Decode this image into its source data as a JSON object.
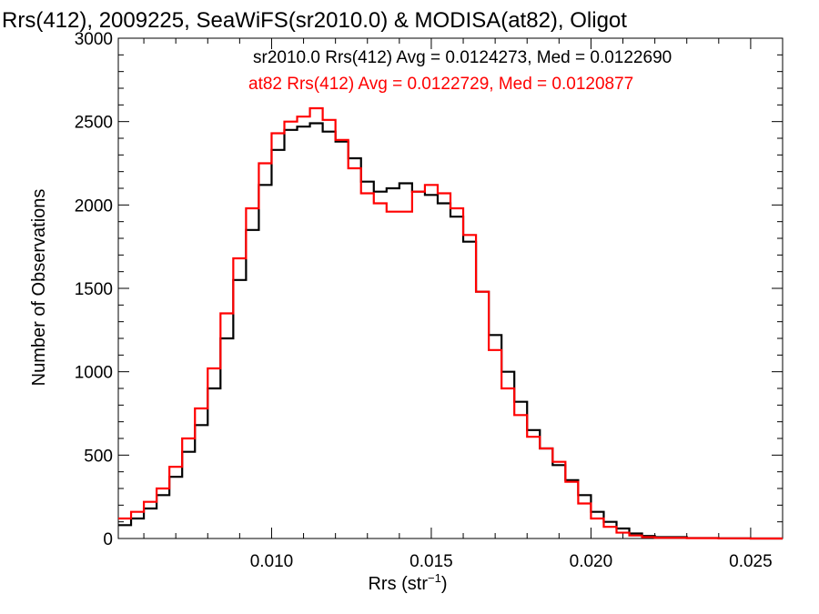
{
  "chart_data": {
    "type": "line",
    "style": "step histogram",
    "title": "Rrs(412), 2009225, SeaWiFS(sr2010.0) & MODISA(at82), Oligot",
    "xlabel": "Rrs (str",
    "xlabel_exponent": "−1",
    "xlabel_close": ")",
    "ylabel": "Number of Observations",
    "xlim": [
      0.0052,
      0.026
    ],
    "ylim": [
      0,
      3000
    ],
    "x_ticks": [
      0.01,
      0.015,
      0.02,
      0.025
    ],
    "x_tick_labels": [
      "0.010",
      "0.015",
      "0.020",
      "0.025"
    ],
    "y_ticks": [
      0,
      500,
      1000,
      1500,
      2000,
      2500,
      3000
    ],
    "y_tick_labels": [
      "0",
      "500",
      "1000",
      "1500",
      "2000",
      "2500",
      "3000"
    ],
    "grid": false,
    "legend_position": "top-right",
    "series": [
      {
        "name": "sr2010.0",
        "color": "#000000",
        "legend_text": "sr2010.0 Rrs(412) Avg = 0.0124273, Med = 0.0122690",
        "x": [
          0.0052,
          0.0056,
          0.006,
          0.0064,
          0.0068,
          0.0072,
          0.0076,
          0.008,
          0.0084,
          0.0088,
          0.0092,
          0.0096,
          0.01,
          0.0104,
          0.0108,
          0.0112,
          0.0116,
          0.012,
          0.0124,
          0.0128,
          0.0132,
          0.0136,
          0.014,
          0.0144,
          0.0148,
          0.0152,
          0.0156,
          0.016,
          0.0164,
          0.0168,
          0.0172,
          0.0176,
          0.018,
          0.0184,
          0.0188,
          0.0192,
          0.0196,
          0.02,
          0.0204,
          0.0208,
          0.0212,
          0.0216,
          0.022,
          0.023,
          0.024,
          0.025,
          0.026
        ],
        "values": [
          80,
          120,
          180,
          260,
          370,
          520,
          680,
          900,
          1200,
          1550,
          1850,
          2120,
          2330,
          2450,
          2470,
          2490,
          2440,
          2380,
          2280,
          2140,
          2080,
          2100,
          2130,
          2080,
          2060,
          2010,
          1930,
          1780,
          1480,
          1220,
          1000,
          820,
          650,
          540,
          440,
          350,
          260,
          160,
          100,
          60,
          30,
          15,
          8,
          3,
          1,
          0,
          0
        ]
      },
      {
        "name": "at82",
        "color": "#ff0000",
        "legend_text": "at82 Rrs(412) Avg = 0.0122729, Med = 0.0120877",
        "x": [
          0.0052,
          0.0056,
          0.006,
          0.0064,
          0.0068,
          0.0072,
          0.0076,
          0.008,
          0.0084,
          0.0088,
          0.0092,
          0.0096,
          0.01,
          0.0104,
          0.0108,
          0.0112,
          0.0116,
          0.012,
          0.0124,
          0.0128,
          0.0132,
          0.0136,
          0.014,
          0.0144,
          0.0148,
          0.0152,
          0.0156,
          0.016,
          0.0164,
          0.0168,
          0.0172,
          0.0176,
          0.018,
          0.0184,
          0.0188,
          0.0192,
          0.0196,
          0.02,
          0.0204,
          0.0208,
          0.0212,
          0.0216,
          0.022,
          0.023,
          0.024,
          0.025,
          0.026
        ],
        "values": [
          120,
          160,
          220,
          300,
          430,
          600,
          780,
          1020,
          1350,
          1680,
          1980,
          2250,
          2430,
          2500,
          2530,
          2580,
          2510,
          2390,
          2220,
          2070,
          2010,
          1960,
          1960,
          2080,
          2120,
          2070,
          1980,
          1820,
          1480,
          1130,
          900,
          740,
          610,
          540,
          460,
          340,
          210,
          120,
          70,
          35,
          18,
          8,
          4,
          2,
          1,
          0,
          0
        ]
      }
    ]
  }
}
